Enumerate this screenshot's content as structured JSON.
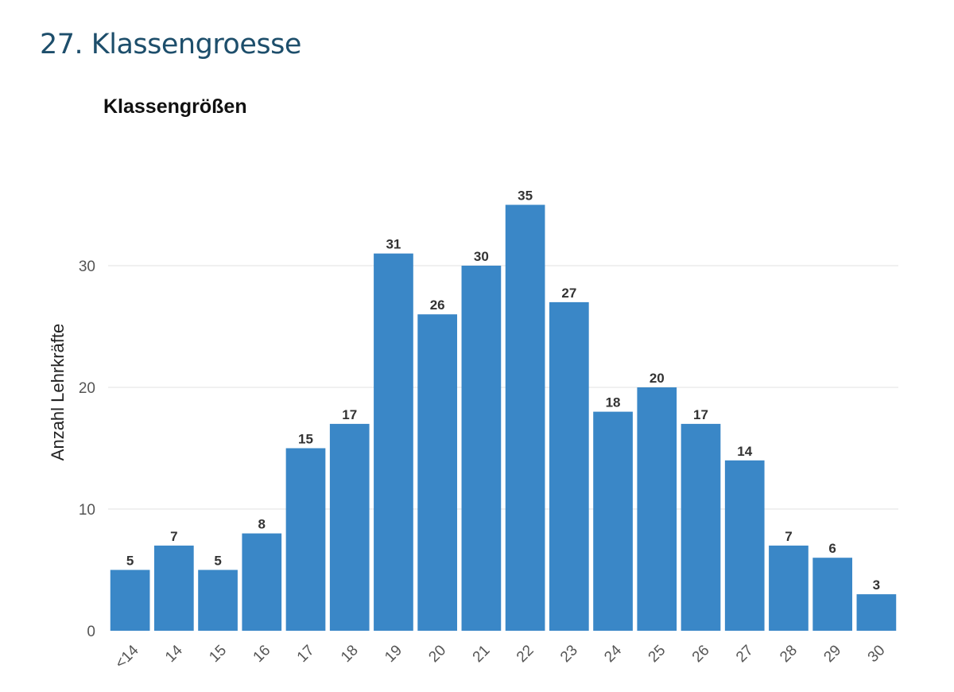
{
  "page": {
    "heading": "27. Klassengroesse"
  },
  "chart_data": {
    "type": "bar",
    "title": "Klassengrößen",
    "xlabel": "",
    "ylabel": "Anzahl Lehrkräfte",
    "categories": [
      "<14",
      "14",
      "15",
      "16",
      "17",
      "18",
      "19",
      "20",
      "21",
      "22",
      "23",
      "24",
      "25",
      "26",
      "27",
      "28",
      "29",
      "30"
    ],
    "values": [
      5,
      7,
      5,
      8,
      15,
      17,
      31,
      26,
      30,
      35,
      27,
      18,
      20,
      17,
      14,
      7,
      6,
      3
    ],
    "ylim": [
      0,
      36
    ],
    "yticks": [
      0,
      10,
      20,
      30
    ],
    "grid": true,
    "legend": "none",
    "bar_color": "#3a87c7",
    "x_tick_rotation": "45deg"
  }
}
